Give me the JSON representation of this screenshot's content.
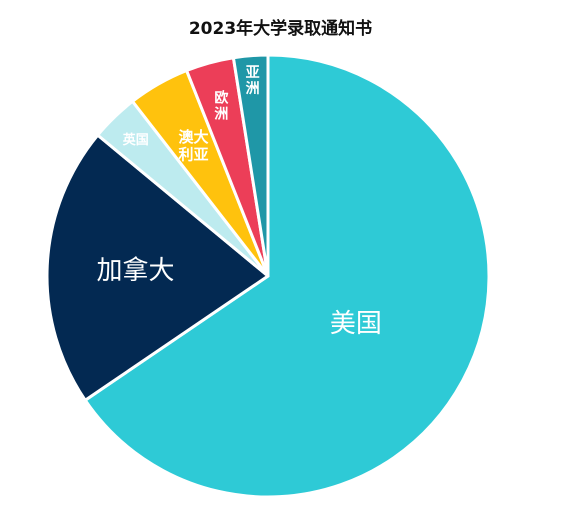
{
  "chart_data": {
    "type": "pie",
    "title": "2023年大学录取通知书",
    "slices": [
      {
        "label": "美国",
        "value": 65.5,
        "color": "#2ecad6"
      },
      {
        "label": "加拿大",
        "value": 20.5,
        "color": "#032952"
      },
      {
        "label": "英国",
        "value": 3.5,
        "color": "#bdebef"
      },
      {
        "label": "澳大利亚",
        "value": 4.5,
        "color": "#ffc20d"
      },
      {
        "label": "欧洲",
        "value": 3.5,
        "color": "#ec3e58"
      },
      {
        "label": "亚洲",
        "value": 2.5,
        "color": "#1f97a7"
      }
    ],
    "start_angle_deg": 0,
    "direction": "clockwise",
    "legend": "none"
  }
}
